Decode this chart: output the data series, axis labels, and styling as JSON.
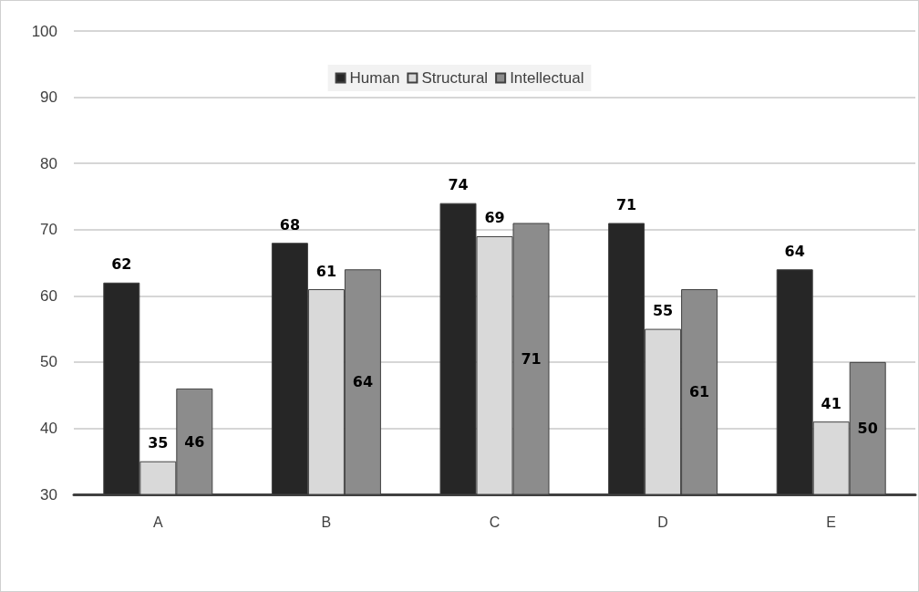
{
  "chart_data": {
    "type": "bar",
    "categories": [
      "A",
      "B",
      "C",
      "D",
      "E"
    ],
    "series": [
      {
        "name": "Human",
        "color": "#262626",
        "values": [
          62,
          68,
          74,
          71,
          64
        ]
      },
      {
        "name": "Structural",
        "color": "#d9d9d9",
        "values": [
          35,
          61,
          69,
          55,
          41
        ]
      },
      {
        "name": "Intellectual",
        "color": "#8c8c8c",
        "values": [
          46,
          64,
          71,
          61,
          50
        ]
      }
    ],
    "ylim": [
      30,
      100
    ],
    "yticks": [
      30,
      40,
      50,
      60,
      70,
      80,
      90,
      100
    ],
    "grid": "y",
    "legend": "top",
    "data_labels": true
  }
}
